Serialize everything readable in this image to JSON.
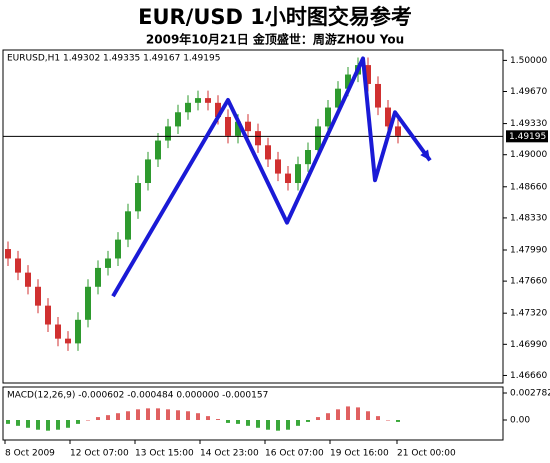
{
  "chart_data": {
    "type": "candlestick",
    "title": "EUR/USD 1小时图交易参考",
    "subtitle": "2009年10月21日 金顶盛世：周游ZHOU You",
    "header": "EURUSD,H1 1.49302 1.49335 1.49167 1.49195",
    "open": [
      1.48,
      1.479,
      1.4775,
      1.476,
      1.474,
      1.472,
      1.4705,
      1.47,
      1.4725,
      1.476,
      1.478,
      1.479,
      1.481,
      1.484,
      1.487,
      1.4895,
      1.4915,
      1.493,
      1.4945,
      1.4955,
      1.496,
      1.4955,
      1.494,
      1.492,
      1.4935,
      1.4925,
      1.491,
      1.4895,
      1.488,
      1.487,
      1.489,
      1.4905,
      1.493,
      1.495,
      1.497,
      1.4985,
      1.4995,
      1.4975,
      1.495,
      1.493
    ],
    "high": [
      1.4808,
      1.4798,
      1.4783,
      1.4768,
      1.4748,
      1.4728,
      1.4713,
      1.4733,
      1.4768,
      1.4788,
      1.4798,
      1.4818,
      1.4848,
      1.4878,
      1.4903,
      1.4923,
      1.4938,
      1.4953,
      1.4963,
      1.4968,
      1.4968,
      1.4963,
      1.4948,
      1.4943,
      1.4943,
      1.4933,
      1.4918,
      1.4903,
      1.4888,
      1.4898,
      1.4913,
      1.4938,
      1.4958,
      1.4978,
      1.4993,
      1.5003,
      1.5003,
      1.4983,
      1.4958,
      1.4938
    ],
    "low": [
      1.4782,
      1.4767,
      1.4752,
      1.4732,
      1.4712,
      1.4697,
      1.4692,
      1.4692,
      1.4717,
      1.4752,
      1.4772,
      1.4782,
      1.4802,
      1.4832,
      1.4862,
      1.4887,
      1.4907,
      1.4922,
      1.4937,
      1.4947,
      1.4947,
      1.4932,
      1.4912,
      1.4912,
      1.4917,
      1.4902,
      1.4887,
      1.4872,
      1.4862,
      1.4862,
      1.4882,
      1.4897,
      1.4922,
      1.4942,
      1.4962,
      1.4977,
      1.4967,
      1.4942,
      1.4922,
      1.4912
    ],
    "close": [
      1.479,
      1.4775,
      1.476,
      1.474,
      1.472,
      1.4705,
      1.47,
      1.4725,
      1.476,
      1.478,
      1.479,
      1.481,
      1.484,
      1.487,
      1.4895,
      1.4915,
      1.493,
      1.4945,
      1.4955,
      1.496,
      1.4955,
      1.494,
      1.492,
      1.4935,
      1.4925,
      1.491,
      1.4895,
      1.488,
      1.487,
      1.489,
      1.4905,
      1.493,
      1.495,
      1.497,
      1.4985,
      1.4995,
      1.4975,
      1.495,
      1.493,
      1.492
    ],
    "up_color": "#2e9a2e",
    "down_color": "#d03030",
    "xlim": [
      -0.5,
      49.5
    ],
    "xticks": [
      {
        "value": -0.3,
        "label": "8 Oct 2009"
      },
      {
        "value": 6.2,
        "label": "12 Oct 07:00"
      },
      {
        "value": 12.7,
        "label": "13 Oct 15:00"
      },
      {
        "value": 19.2,
        "label": "14 Oct 23:00"
      },
      {
        "value": 25.7,
        "label": "16 Oct 07:00"
      },
      {
        "value": 32.2,
        "label": "19 Oct 16:00"
      },
      {
        "value": 38.9,
        "label": "21 Oct 00:00"
      }
    ],
    "ylim": [
      1.4658,
      1.5011
    ],
    "yticks": [
      {
        "value": 1.5,
        "label": "1.50000"
      },
      {
        "value": 1.4967,
        "label": "1.49670"
      },
      {
        "value": 1.4933,
        "label": "1.49330"
      },
      {
        "value": 1.49,
        "label": "1.49000"
      },
      {
        "value": 1.4866,
        "label": "1.48660"
      },
      {
        "value": 1.4833,
        "label": "1.48330"
      },
      {
        "value": 1.4799,
        "label": "1.47990"
      },
      {
        "value": 1.4766,
        "label": "1.47660"
      },
      {
        "value": 1.4732,
        "label": "1.47320"
      },
      {
        "value": 1.4699,
        "label": "1.46990"
      },
      {
        "value": 1.4666,
        "label": "1.46660"
      }
    ],
    "current_price": 1.49195,
    "zigzag": {
      "color": "#1a1ad6",
      "x": [
        10.5,
        22,
        27.9,
        35.5,
        36.7,
        38.7,
        42.2
      ],
      "y": [
        1.475,
        1.4958,
        1.4828,
        1.5002,
        1.4873,
        1.4945,
        1.4894
      ]
    },
    "macd": {
      "header": "MACD(12,26,9) -0.000602 -0.000484 0.000000 -0.000157",
      "ylim": [
        -0.00206,
        0.0034
      ],
      "yticks": [
        {
          "value": 0.002782,
          "label": "0.002782"
        },
        {
          "value": 0,
          "label": "0.00"
        }
      ],
      "values": [
        -0.0004,
        -0.0006,
        -0.0008,
        -0.001,
        -0.0011,
        -0.001,
        -0.0008,
        -0.0004,
        0,
        0.0003,
        0.0005,
        0.0007,
        0.0009,
        0.0011,
        0.0012,
        0.0012,
        0.0011,
        0.001,
        0.0009,
        0.0007,
        0.0004,
        0.0001,
        -0.0003,
        -0.0004,
        -0.0006,
        -0.0008,
        -0.001,
        -0.0011,
        -0.001,
        -0.0006,
        -0.0002,
        0.0003,
        0.0007,
        0.0011,
        0.0014,
        0.0013,
        0.0009,
        0.0004,
        0,
        -0.0002
      ],
      "pos_color": "#e06060",
      "neg_color": "#3aa83a"
    }
  }
}
